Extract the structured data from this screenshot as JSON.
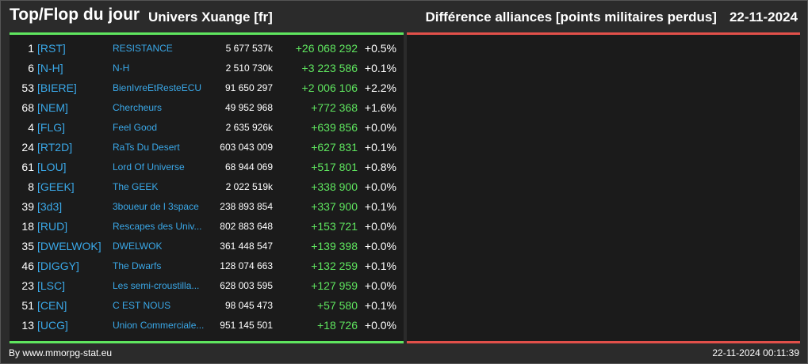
{
  "header": {
    "title": "Top/Flop du jour",
    "universe": "Univers Xuange [fr]",
    "subtitle": "Différence alliances [points militaires perdus]",
    "date": "22-11-2024"
  },
  "rows": [
    {
      "rank": "1",
      "tag": "[RST]",
      "name": "RESISTANCE",
      "points": "5 677 537k",
      "diff": "+26 068 292",
      "pct": "+0.5%"
    },
    {
      "rank": "6",
      "tag": "[N-H]",
      "name": "N-H",
      "points": "2 510 730k",
      "diff": "+3 223 586",
      "pct": "+0.1%"
    },
    {
      "rank": "53",
      "tag": "[BIERE]",
      "name": "BienIvreEtResteECU",
      "points": "91 650 297",
      "diff": "+2 006 106",
      "pct": "+2.2%"
    },
    {
      "rank": "68",
      "tag": "[NEM]",
      "name": "Chercheurs",
      "points": "49 952 968",
      "diff": "+772 368",
      "pct": "+1.6%"
    },
    {
      "rank": "4",
      "tag": "[FLG]",
      "name": "Feel Good",
      "points": "2 635 926k",
      "diff": "+639 856",
      "pct": "+0.0%"
    },
    {
      "rank": "24",
      "tag": "[RT2D]",
      "name": "RaTs Du Desert",
      "points": "603 043 009",
      "diff": "+627 831",
      "pct": "+0.1%"
    },
    {
      "rank": "61",
      "tag": "[LOU]",
      "name": "Lord Of Universe",
      "points": "68 944 069",
      "diff": "+517 801",
      "pct": "+0.8%"
    },
    {
      "rank": "8",
      "tag": "[GEEK]",
      "name": "The GEEK",
      "points": "2 022 519k",
      "diff": "+338 900",
      "pct": "+0.0%"
    },
    {
      "rank": "39",
      "tag": "[3d3]",
      "name": "3boueur de l 3space",
      "points": "238 893 854",
      "diff": "+337 900",
      "pct": "+0.1%"
    },
    {
      "rank": "18",
      "tag": "[RUD]",
      "name": "Rescapes des Univ...",
      "points": "802 883 648",
      "diff": "+153 721",
      "pct": "+0.0%"
    },
    {
      "rank": "35",
      "tag": "[DWELWOK]",
      "name": "DWELWOK",
      "points": "361 448 547",
      "diff": "+139 398",
      "pct": "+0.0%"
    },
    {
      "rank": "46",
      "tag": "[DIGGY]",
      "name": "The Dwarfs",
      "points": "128 074 663",
      "diff": "+132 259",
      "pct": "+0.1%"
    },
    {
      "rank": "23",
      "tag": "[LSC]",
      "name": "Les semi-croustilla...",
      "points": "628 003 595",
      "diff": "+127 959",
      "pct": "+0.0%"
    },
    {
      "rank": "51",
      "tag": "[CEN]",
      "name": "C EST NOUS",
      "points": "98 045 473",
      "diff": "+57 580",
      "pct": "+0.1%"
    },
    {
      "rank": "13",
      "tag": "[UCG]",
      "name": "Union Commerciale...",
      "points": "951 145 501",
      "diff": "+18 726",
      "pct": "+0.0%"
    }
  ],
  "footer": {
    "credit": "By www.mmorpg-stat.eu",
    "timestamp": "22-11-2024 00:11:39"
  },
  "colors": {
    "top_accent": "#5fe65f",
    "flop_accent": "#e2504a",
    "link": "#3aa8e8",
    "positive": "#5fe65f"
  }
}
